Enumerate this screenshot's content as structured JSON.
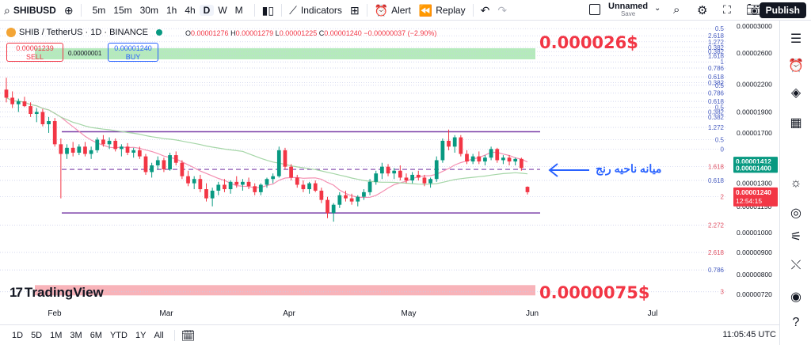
{
  "toolbar": {
    "symbol": "SHIBUSD",
    "timeframes": [
      "5m",
      "15m",
      "30m",
      "1h",
      "4h",
      "D",
      "W",
      "M"
    ],
    "active_timeframe": "D",
    "indicators_label": "Indicators",
    "alert_label": "Alert",
    "replay_label": "Replay",
    "layout_name": "Unnamed",
    "layout_status": "Save",
    "publish_label": "Publish"
  },
  "legend": {
    "title": "SHIB / TetherUS · 1D · BINANCE",
    "open_label": "O",
    "open": "0.00001276",
    "high_label": "H",
    "high": "0.00001279",
    "low_label": "L",
    "low": "0.00001225",
    "close_label": "C",
    "close": "0.00001240",
    "change": "−0.00000037 (−2.90%)",
    "sell_price": "0.00001239",
    "sell_label": "SELL",
    "spread": "0.00000001",
    "buy_price": "0.00001240",
    "buy_label": "BUY"
  },
  "annotations": {
    "upper_target": "0.000026$",
    "lower_target": "0.0000075$",
    "range_mid_note": "میانه ناحیه رنج"
  },
  "price_axis": {
    "ticks": [
      "0.00003000",
      "0.00002600",
      "0.00002200",
      "0.00001900",
      "0.00001700",
      "0.00001300",
      "0.00001150",
      "0.00001000",
      "0.00000900",
      "0.00000800",
      "0.00000720"
    ],
    "tag_1": "0.00001412",
    "tag_2": "0.00001400",
    "last_price": "0.00001240",
    "countdown": "12:54:15"
  },
  "fib_labels": [
    "0.5",
    "2.618",
    "1.272",
    "0.382",
    "0.382",
    "1.618",
    "1",
    "0.786",
    "0.618",
    "0.382",
    "0.5",
    "0.786",
    "0.618",
    "0.5",
    "0.382",
    "0.382",
    "1.272",
    "0.5",
    "0",
    "1.618",
    "0.618",
    "2",
    "2.272",
    "2.618",
    "0.786",
    "3"
  ],
  "time_axis": [
    "Feb",
    "Mar",
    "Apr",
    "May",
    "Jun",
    "Jul"
  ],
  "bottom": {
    "ranges": [
      "1D",
      "5D",
      "1M",
      "3M",
      "6M",
      "YTD",
      "1Y",
      "All"
    ],
    "clock": "11:05:45 UTC"
  },
  "branding": {
    "logo_text": "TradingView",
    "logo_mark": "17"
  },
  "colors": {
    "up": "#089981",
    "down": "#f23645",
    "accent": "#2962ff",
    "range_line": "#7b3fa8",
    "upper_zone": "#a8e6b0",
    "lower_zone": "#f7a6ad"
  },
  "chart_data": {
    "type": "candlestick",
    "indicators": [
      {
        "type": "moving_average",
        "color": "#f48fb1"
      },
      {
        "type": "moving_average",
        "color": "#a5d6a7"
      }
    ],
    "price_range": [
      7.2e-06,
      3e-05
    ],
    "scale": "log",
    "range_high": 1.71e-05,
    "range_low": 1.11e-05,
    "range_mid": 1.4e-05,
    "upper_target": 2.6e-05,
    "lower_target": 7.5e-06,
    "ohlc": [
      [
        2.14e-05,
        2.28e-05,
        2e-05,
        2.05e-05
      ],
      [
        2.05e-05,
        2.12e-05,
        1.94e-05,
        1.98e-05
      ],
      [
        1.98e-05,
        2.04e-05,
        1.9e-05,
        2.01e-05
      ],
      [
        2.01e-05,
        2.06e-05,
        1.95e-05,
        1.96e-05
      ],
      [
        1.96e-05,
        2e-05,
        1.85e-05,
        1.88e-05
      ],
      [
        1.88e-05,
        1.94e-05,
        1.8e-05,
        1.9e-05
      ],
      [
        1.9e-05,
        1.93e-05,
        1.76e-05,
        1.78e-05
      ],
      [
        1.78e-05,
        1.85e-05,
        1.7e-05,
        1.81e-05
      ],
      [
        1.81e-05,
        1.84e-05,
        1.58e-05,
        1.6e-05
      ],
      [
        1.6e-05,
        1.65e-05,
        1.2e-05,
        1.52e-05
      ],
      [
        1.52e-05,
        1.6e-05,
        1.48e-05,
        1.57e-05
      ],
      [
        1.57e-05,
        1.62e-05,
        1.5e-05,
        1.53e-05
      ],
      [
        1.53e-05,
        1.6e-05,
        1.51e-05,
        1.58e-05
      ],
      [
        1.58e-05,
        1.62e-05,
        1.5e-05,
        1.52e-05
      ],
      [
        1.52e-05,
        1.58e-05,
        1.48e-05,
        1.55e-05
      ],
      [
        1.55e-05,
        1.66e-05,
        1.53e-05,
        1.64e-05
      ],
      [
        1.64e-05,
        1.68e-05,
        1.58e-05,
        1.6e-05
      ],
      [
        1.6e-05,
        1.66e-05,
        1.56e-05,
        1.63e-05
      ],
      [
        1.63e-05,
        1.65e-05,
        1.54e-05,
        1.56e-05
      ],
      [
        1.56e-05,
        1.6e-05,
        1.5e-05,
        1.58e-05
      ],
      [
        1.58e-05,
        1.61e-05,
        1.51e-05,
        1.53e-05
      ],
      [
        1.53e-05,
        1.57e-05,
        1.49e-05,
        1.55e-05
      ],
      [
        1.55e-05,
        1.58e-05,
        1.48e-05,
        1.5e-05
      ],
      [
        1.5e-05,
        1.52e-05,
        1.36e-05,
        1.38e-05
      ],
      [
        1.38e-05,
        1.45e-05,
        1.34e-05,
        1.43e-05
      ],
      [
        1.43e-05,
        1.5e-05,
        1.4e-05,
        1.47e-05
      ],
      [
        1.47e-05,
        1.49e-05,
        1.38e-05,
        1.4e-05
      ],
      [
        1.4e-05,
        1.53e-05,
        1.39e-05,
        1.51e-05
      ],
      [
        1.51e-05,
        1.54e-05,
        1.43e-05,
        1.45e-05
      ],
      [
        1.45e-05,
        1.47e-05,
        1.33e-05,
        1.35e-05
      ],
      [
        1.35e-05,
        1.39e-05,
        1.28e-05,
        1.3e-05
      ],
      [
        1.3e-05,
        1.35e-05,
        1.26e-05,
        1.33e-05
      ],
      [
        1.33e-05,
        1.36e-05,
        1.24e-05,
        1.26e-05
      ],
      [
        1.26e-05,
        1.3e-05,
        1.18e-05,
        1.2e-05
      ],
      [
        1.2e-05,
        1.27e-05,
        1.15e-05,
        1.25e-05
      ],
      [
        1.25e-05,
        1.31e-05,
        1.22e-05,
        1.29e-05
      ],
      [
        1.29e-05,
        1.33e-05,
        1.24e-05,
        1.26e-05
      ],
      [
        1.26e-05,
        1.32e-05,
        1.23e-05,
        1.31e-05
      ],
      [
        1.31e-05,
        1.35e-05,
        1.27e-05,
        1.29e-05
      ],
      [
        1.29e-05,
        1.33e-05,
        1.25e-05,
        1.31e-05
      ],
      [
        1.31e-05,
        1.34e-05,
        1.26e-05,
        1.28e-05
      ],
      [
        1.28e-05,
        1.3e-05,
        1.22e-05,
        1.24e-05
      ],
      [
        1.24e-05,
        1.3e-05,
        1.22e-05,
        1.29e-05
      ],
      [
        1.29e-05,
        1.34e-05,
        1.27e-05,
        1.33e-05
      ],
      [
        1.33e-05,
        1.37e-05,
        1.3e-05,
        1.35e-05
      ],
      [
        1.35e-05,
        1.58e-05,
        1.34e-05,
        1.55e-05
      ],
      [
        1.55e-05,
        1.57e-05,
        1.4e-05,
        1.42e-05
      ],
      [
        1.42e-05,
        1.44e-05,
        1.32e-05,
        1.34e-05
      ],
      [
        1.34e-05,
        1.36e-05,
        1.27e-05,
        1.29e-05
      ],
      [
        1.29e-05,
        1.32e-05,
        1.24e-05,
        1.26e-05
      ],
      [
        1.26e-05,
        1.31e-05,
        1.23e-05,
        1.3e-05
      ],
      [
        1.3e-05,
        1.32e-05,
        1.24e-05,
        1.25e-05
      ],
      [
        1.25e-05,
        1.27e-05,
        1.17e-05,
        1.19e-05
      ],
      [
        1.19e-05,
        1.21e-05,
        1.08e-05,
        1.11e-05
      ],
      [
        1.11e-05,
        1.17e-05,
        1.06e-05,
        1.16e-05
      ],
      [
        1.16e-05,
        1.24e-05,
        1.14e-05,
        1.22e-05
      ],
      [
        1.22e-05,
        1.25e-05,
        1.18e-05,
        1.2e-05
      ],
      [
        1.2e-05,
        1.23e-05,
        1.16e-05,
        1.18e-05
      ],
      [
        1.18e-05,
        1.22e-05,
        1.15e-05,
        1.21e-05
      ],
      [
        1.21e-05,
        1.26e-05,
        1.19e-05,
        1.24e-05
      ],
      [
        1.24e-05,
        1.33e-05,
        1.22e-05,
        1.31e-05
      ],
      [
        1.31e-05,
        1.39e-05,
        1.29e-05,
        1.37e-05
      ],
      [
        1.37e-05,
        1.45e-05,
        1.33e-05,
        1.42e-05
      ],
      [
        1.42e-05,
        1.44e-05,
        1.35e-05,
        1.37e-05
      ],
      [
        1.37e-05,
        1.41e-05,
        1.33e-05,
        1.39e-05
      ],
      [
        1.39e-05,
        1.43e-05,
        1.32e-05,
        1.34e-05
      ],
      [
        1.34e-05,
        1.37e-05,
        1.3e-05,
        1.32e-05
      ],
      [
        1.32e-05,
        1.38e-05,
        1.3e-05,
        1.36e-05
      ],
      [
        1.36e-05,
        1.39e-05,
        1.32e-05,
        1.34e-05
      ],
      [
        1.34e-05,
        1.36e-05,
        1.28e-05,
        1.3e-05
      ],
      [
        1.3e-05,
        1.34e-05,
        1.27e-05,
        1.33e-05
      ],
      [
        1.33e-05,
        1.5e-05,
        1.31e-05,
        1.47e-05
      ],
      [
        1.47e-05,
        1.65e-05,
        1.45e-05,
        1.63e-05
      ],
      [
        1.63e-05,
        1.73e-05,
        1.55e-05,
        1.58e-05
      ],
      [
        1.58e-05,
        1.68e-05,
        1.53e-05,
        1.66e-05
      ],
      [
        1.66e-05,
        1.68e-05,
        1.5e-05,
        1.52e-05
      ],
      [
        1.52e-05,
        1.55e-05,
        1.44e-05,
        1.46e-05
      ],
      [
        1.46e-05,
        1.52e-05,
        1.44e-05,
        1.5e-05
      ],
      [
        1.5e-05,
        1.54e-05,
        1.44e-05,
        1.46e-05
      ],
      [
        1.46e-05,
        1.51e-05,
        1.43e-05,
        1.49e-05
      ],
      [
        1.49e-05,
        1.58e-05,
        1.47e-05,
        1.56e-05
      ],
      [
        1.56e-05,
        1.57e-05,
        1.45e-05,
        1.47e-05
      ],
      [
        1.47e-05,
        1.51e-05,
        1.44e-05,
        1.49e-05
      ],
      [
        1.49e-05,
        1.51e-05,
        1.43e-05,
        1.46e-05
      ],
      [
        1.46e-05,
        1.49e-05,
        1.43e-05,
        1.48e-05
      ],
      [
        1.48e-05,
        1.49e-05,
        1.39e-05,
        1.41e-05
      ],
      [
        1.276e-05,
        1.279e-05,
        1.225e-05,
        1.24e-05
      ]
    ]
  }
}
